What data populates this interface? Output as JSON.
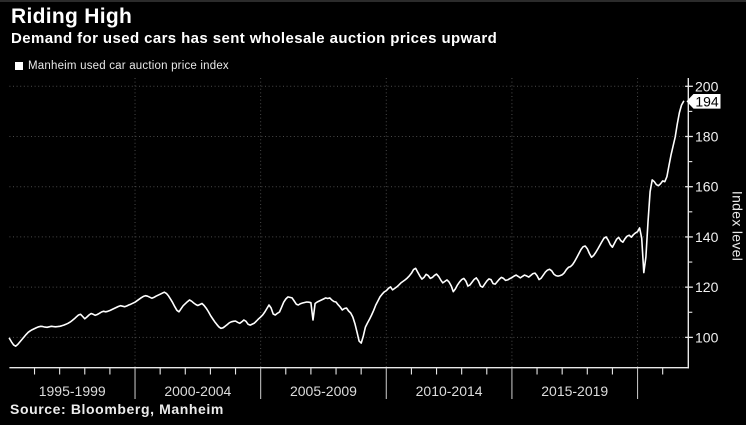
{
  "page": {
    "background": "#000000",
    "colors": {
      "text": "#ffffff",
      "muted_text": "#e3e3e3",
      "grid": "#4a4a4a",
      "axis": "#e8e8e8",
      "series_line": "#ffffff",
      "tag_bg": "#ffffff",
      "tag_text": "#000000"
    }
  },
  "header": {
    "title": "Riding High",
    "subtitle": "Demand for used cars has sent wholesale auction prices upward",
    "legend_label": "Manheim used car auction price index"
  },
  "footer": {
    "source": "Source: Bloomberg, Manheim"
  },
  "chart_data": {
    "type": "line",
    "title": "Riding High",
    "subtitle": "Demand for used cars has sent wholesale auction prices upward",
    "legend_position": "top-left",
    "grid": {
      "horizontal": "dotted",
      "vertical": "dotted-at-divider-years"
    },
    "x_axis": {
      "domain_years": [
        1995,
        2022
      ],
      "dividers": [
        2000,
        2005,
        2010,
        2015,
        2020
      ],
      "group_labels": [
        "1995-1999",
        "2000-2004",
        "2005-2009",
        "2010-2014",
        "2015-2019"
      ]
    },
    "y_axis": {
      "label": "Index level",
      "side": "right",
      "ticks": [
        100,
        120,
        140,
        160,
        180,
        200
      ],
      "minor_ticks": [
        110,
        130,
        150,
        170,
        190
      ],
      "domain": [
        88,
        203.3
      ]
    },
    "annotations": {
      "last_value": 194,
      "last_value_label": "194"
    },
    "series": [
      {
        "name": "Manheim used car auction price index",
        "color": "#ffffff",
        "start_year": 1995,
        "frequency": "monthly",
        "values": [
          99.6,
          98.2,
          97.0,
          96.5,
          97.2,
          98.2,
          99.2,
          100.2,
          101.2,
          102.0,
          102.6,
          103.1,
          103.5,
          103.9,
          104.2,
          104.4,
          104.3,
          104.1,
          104.0,
          104.2,
          104.4,
          104.3,
          104.2,
          104.3,
          104.4,
          104.6,
          104.9,
          105.2,
          105.6,
          106.1,
          106.7,
          107.4,
          108.2,
          108.9,
          109.2,
          108.3,
          107.4,
          108.1,
          108.9,
          109.5,
          109.2,
          108.8,
          109.1,
          109.6,
          110.1,
          110.4,
          110.2,
          110.4,
          110.7,
          111.1,
          111.5,
          111.9,
          112.3,
          112.6,
          112.4,
          112.2,
          112.5,
          112.9,
          113.2,
          113.6,
          114.0,
          114.6,
          115.2,
          115.8,
          116.3,
          116.6,
          116.4,
          116.0,
          115.6,
          115.9,
          116.4,
          116.8,
          117.2,
          117.6,
          118.0,
          117.5,
          116.5,
          115.2,
          113.8,
          112.2,
          110.8,
          110.2,
          111.4,
          112.6,
          113.4,
          114.2,
          114.9,
          114.4,
          113.7,
          113.1,
          112.7,
          113.1,
          113.5,
          112.7,
          111.6,
          110.3,
          108.8,
          107.5,
          106.3,
          105.2,
          104.2,
          103.6,
          103.8,
          104.4,
          105.1,
          105.8,
          106.2,
          106.4,
          106.5,
          106.0,
          105.6,
          106.2,
          106.9,
          106.4,
          105.2,
          104.9,
          105.3,
          105.7,
          106.5,
          107.4,
          108.1,
          109.0,
          110.1,
          111.5,
          112.9,
          111.7,
          109.3,
          108.9,
          109.6,
          110.1,
          112.0,
          114.0,
          115.3,
          116.1,
          115.9,
          115.7,
          114.5,
          113.2,
          112.9,
          113.4,
          113.7,
          113.9,
          114.1,
          114.0,
          113.8,
          106.9,
          113.5,
          114.1,
          114.5,
          114.9,
          115.3,
          115.7,
          115.5,
          115.7,
          114.9,
          114.3,
          114.1,
          113.0,
          112.1,
          110.9,
          111.5,
          111.7,
          110.5,
          109.7,
          108.1,
          105.5,
          102.1,
          98.5,
          97.7,
          100.5,
          104.1,
          105.7,
          107.2,
          108.9,
          110.8,
          112.9,
          114.5,
          116.1,
          117.2,
          118.1,
          118.6,
          119.5,
          120.1,
          118.9,
          119.5,
          120.1,
          120.9,
          121.7,
          122.3,
          122.9,
          123.6,
          124.5,
          125.5,
          127.0,
          127.5,
          126.0,
          124.5,
          123.2,
          123.9,
          125.1,
          124.6,
          123.5,
          123.9,
          124.7,
          125.2,
          124.3,
          122.9,
          121.7,
          122.3,
          122.9,
          122.0,
          120.5,
          118.2,
          119.3,
          120.9,
          122.1,
          123.0,
          123.5,
          122.4,
          120.4,
          120.9,
          122.0,
          123.1,
          123.7,
          122.5,
          120.4,
          120.0,
          121.2,
          122.4,
          123.3,
          123.0,
          121.4,
          121.2,
          122.2,
          123.2,
          123.9,
          123.5,
          122.7,
          122.9,
          123.4,
          123.8,
          124.4,
          124.8,
          124.3,
          123.7,
          124.3,
          124.8,
          124.5,
          124.0,
          124.7,
          125.4,
          125.6,
          124.6,
          123.0,
          123.6,
          124.8,
          126.0,
          126.8,
          127.1,
          126.5,
          125.2,
          124.6,
          124.4,
          124.6,
          124.9,
          125.7,
          127.0,
          127.9,
          128.2,
          129.0,
          130.3,
          131.8,
          133.4,
          135.0,
          136.1,
          136.4,
          135.3,
          133.4,
          131.9,
          132.6,
          133.8,
          135.2,
          136.7,
          138.2,
          139.5,
          140.0,
          138.7,
          136.9,
          135.9,
          137.5,
          139.1,
          139.8,
          138.5,
          137.9,
          139.3,
          140.3,
          140.7,
          139.9,
          140.9,
          141.6,
          142.1,
          143.6,
          139.5,
          125.8,
          132.0,
          146.0,
          158.0,
          162.7,
          162.0,
          160.8,
          160.4,
          161.2,
          162.3,
          162.0,
          164.0,
          168.5,
          172.6,
          176.2,
          179.8,
          185.0,
          189.5,
          192.5,
          194.0
        ]
      }
    ]
  }
}
